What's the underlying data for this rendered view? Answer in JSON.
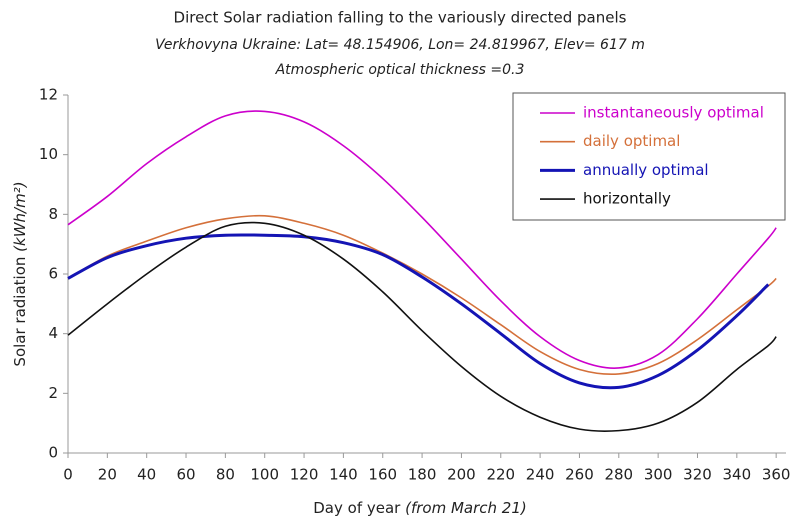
{
  "chart_data": {
    "type": "line",
    "title": "Direct Solar radiation falling to the variously directed panels",
    "subtitle": "Verkhovyna Ukraine: Lat= 48.154906, Lon= 24.819967, Elev= 617 m",
    "subtitle2": "Atmospheric optical thickness =0.3",
    "y_label": "Solar radiation ",
    "y_label_units": "(kWh/m²)",
    "x_label": "Day of year ",
    "x_label_note": "(from March 21)",
    "x": [
      0,
      20,
      40,
      60,
      80,
      100,
      120,
      140,
      160,
      180,
      200,
      220,
      240,
      260,
      280,
      300,
      320,
      340,
      356,
      360
    ],
    "series": [
      {
        "name": "instantaneously optimal",
        "color": "#cc00cc",
        "width": 1.6,
        "values": [
          7.65,
          8.6,
          9.7,
          10.6,
          11.3,
          11.45,
          11.1,
          10.3,
          9.2,
          7.9,
          6.5,
          5.1,
          3.9,
          3.1,
          2.85,
          3.3,
          4.5,
          6.0,
          7.2,
          7.55
        ]
      },
      {
        "name": "daily optimal",
        "color": "#d4703a",
        "width": 1.6,
        "values": [
          5.85,
          6.6,
          7.1,
          7.55,
          7.85,
          7.95,
          7.7,
          7.3,
          6.7,
          6.0,
          5.2,
          4.3,
          3.4,
          2.8,
          2.65,
          3.0,
          3.8,
          4.8,
          5.6,
          5.85
        ]
      },
      {
        "name": "annually optimal",
        "color": "#1414b4",
        "width": 3,
        "values": [
          5.85,
          6.55,
          6.95,
          7.2,
          7.3,
          7.3,
          7.25,
          7.05,
          6.65,
          5.9,
          5.0,
          4.0,
          3.0,
          2.35,
          2.2,
          2.6,
          3.45,
          4.6,
          5.65,
          null
        ]
      },
      {
        "name": "horizontally",
        "color": "#111111",
        "width": 1.6,
        "values": [
          3.95,
          5.0,
          6.0,
          6.9,
          7.6,
          7.7,
          7.3,
          6.5,
          5.4,
          4.1,
          2.9,
          1.9,
          1.2,
          0.8,
          0.75,
          1.0,
          1.7,
          2.8,
          3.6,
          3.9
        ]
      }
    ],
    "xlim": [
      0,
      365
    ],
    "xticks": [
      0,
      20,
      40,
      60,
      80,
      100,
      120,
      140,
      160,
      180,
      200,
      220,
      240,
      260,
      280,
      300,
      320,
      340,
      360
    ],
    "ylim": [
      0,
      12
    ],
    "yticks": [
      0,
      2,
      4,
      6,
      8,
      10,
      12
    ],
    "grid": false,
    "legend": "upper right"
  }
}
